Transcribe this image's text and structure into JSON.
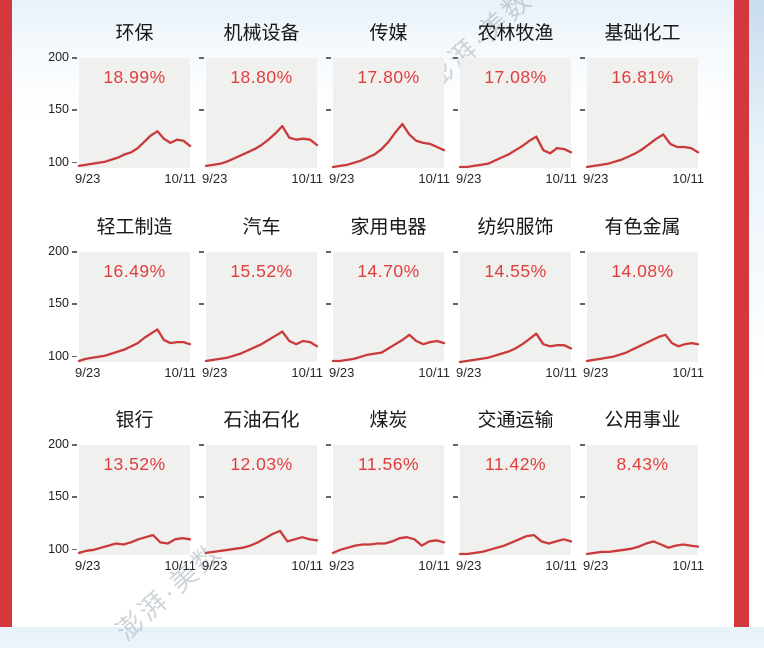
{
  "page": {
    "accent_red": "#d4383d",
    "watermark": {
      "text": "澎湃·美数课"
    }
  },
  "chart_data": {
    "type": "line",
    "x_labels": [
      "9/23",
      "10/11"
    ],
    "y_ticks": [
      "200",
      "150",
      "100"
    ],
    "ylim": [
      95,
      200
    ],
    "line_color": "#c93a3a",
    "pct_color": "#e03e3e",
    "plot_bg": "#f0f0ee",
    "grid": {
      "rows": 3,
      "cols": 5
    },
    "series": [
      {
        "name": "环保",
        "change": "18.99%",
        "values": [
          97,
          98,
          99,
          100,
          101,
          103,
          105,
          108,
          110,
          114,
          120,
          126,
          130,
          123,
          119,
          122,
          121,
          116
        ]
      },
      {
        "name": "机械设备",
        "change": "18.80%",
        "values": [
          97,
          98,
          99,
          101,
          104,
          107,
          110,
          113,
          117,
          122,
          128,
          135,
          124,
          122,
          123,
          122,
          117
        ]
      },
      {
        "name": "传媒",
        "change": "17.80%",
        "values": [
          96,
          97,
          98,
          100,
          102,
          105,
          108,
          113,
          120,
          129,
          137,
          127,
          121,
          119,
          118,
          115,
          112
        ]
      },
      {
        "name": "农林牧渔",
        "change": "17.08%",
        "values": [
          96,
          96,
          97,
          98,
          99,
          102,
          105,
          108,
          112,
          116,
          121,
          125,
          112,
          109,
          114,
          113,
          110
        ]
      },
      {
        "name": "基础化工",
        "change": "16.81%",
        "values": [
          96,
          97,
          98,
          99,
          101,
          103,
          106,
          109,
          113,
          118,
          123,
          127,
          118,
          115,
          115,
          114,
          110
        ]
      },
      {
        "name": "轻工制造",
        "change": "16.49%",
        "values": [
          96,
          98,
          99,
          100,
          101,
          103,
          105,
          107,
          110,
          113,
          118,
          122,
          126,
          116,
          113,
          114,
          114,
          112
        ]
      },
      {
        "name": "汽车",
        "change": "15.52%",
        "values": [
          96,
          97,
          98,
          99,
          101,
          103,
          106,
          109,
          112,
          116,
          120,
          124,
          115,
          112,
          115,
          114,
          110
        ]
      },
      {
        "name": "家用电器",
        "change": "14.70%",
        "values": [
          96,
          96,
          97,
          98,
          100,
          102,
          103,
          104,
          108,
          112,
          116,
          121,
          115,
          112,
          114,
          115,
          113
        ]
      },
      {
        "name": "纺织服饰",
        "change": "14.55%",
        "values": [
          95,
          96,
          97,
          98,
          99,
          101,
          103,
          105,
          108,
          112,
          117,
          122,
          112,
          110,
          111,
          111,
          108
        ]
      },
      {
        "name": "有色金属",
        "change": "14.08%",
        "values": [
          96,
          97,
          98,
          99,
          100,
          102,
          104,
          107,
          110,
          113,
          116,
          119,
          121,
          113,
          110,
          112,
          113,
          112
        ]
      },
      {
        "name": "银行",
        "change": "13.52%",
        "values": [
          97,
          99,
          100,
          102,
          104,
          106,
          105,
          107,
          110,
          112,
          114,
          107,
          106,
          110,
          111,
          110
        ]
      },
      {
        "name": "石油石化",
        "change": "12.03%",
        "values": [
          97,
          98,
          99,
          100,
          101,
          102,
          104,
          107,
          111,
          115,
          118,
          108,
          110,
          112,
          110,
          109
        ]
      },
      {
        "name": "煤炭",
        "change": "11.56%",
        "values": [
          97,
          100,
          102,
          104,
          105,
          105,
          106,
          106,
          108,
          111,
          112,
          110,
          104,
          108,
          109,
          107
        ]
      },
      {
        "name": "交通运输",
        "change": "11.42%",
        "values": [
          96,
          96,
          97,
          98,
          100,
          102,
          104,
          107,
          110,
          113,
          114,
          108,
          106,
          108,
          110,
          108
        ]
      },
      {
        "name": "公用事业",
        "change": "8.43%",
        "values": [
          96,
          97,
          98,
          98,
          99,
          100,
          101,
          103,
          106,
          108,
          105,
          102,
          104,
          105,
          104,
          103
        ]
      }
    ]
  }
}
